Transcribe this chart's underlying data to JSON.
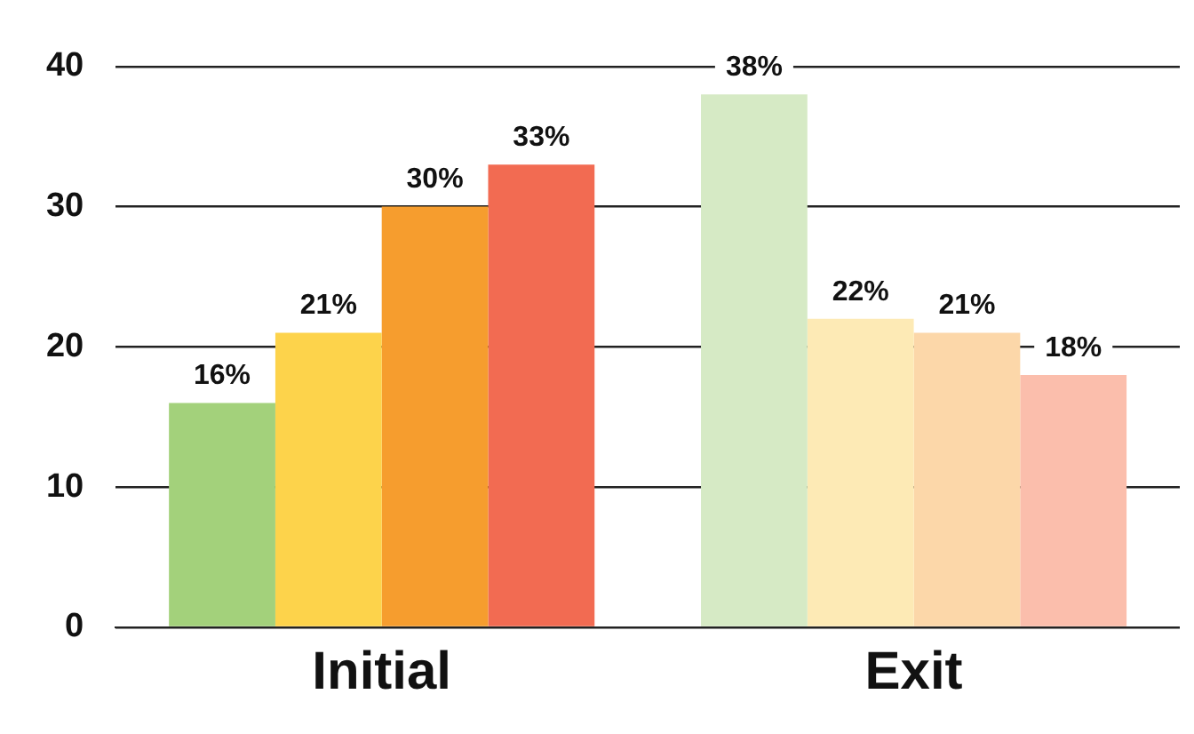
{
  "chart_data": {
    "type": "bar",
    "categories": [
      "Initial",
      "Exit"
    ],
    "series": [
      {
        "colors": [
          "#a3d17b",
          "#d6eac5"
        ],
        "values": [
          16,
          38
        ],
        "value_labels": [
          "16%",
          "38%"
        ]
      },
      {
        "colors": [
          "#fdd34b",
          "#fdeab5"
        ],
        "values": [
          21,
          22
        ],
        "value_labels": [
          "21%",
          "22%"
        ]
      },
      {
        "colors": [
          "#f69d2e",
          "#fcd7a9"
        ],
        "values": [
          30,
          21
        ],
        "value_labels": [
          "30%",
          "21%"
        ]
      },
      {
        "colors": [
          "#f26b52",
          "#fbbeac"
        ],
        "values": [
          33,
          18
        ],
        "value_labels": [
          "33%",
          "18%"
        ]
      }
    ],
    "ylim": [
      0,
      40
    ],
    "yticks": [
      0,
      10,
      20,
      30,
      40
    ],
    "grid": "y",
    "legend": false
  }
}
